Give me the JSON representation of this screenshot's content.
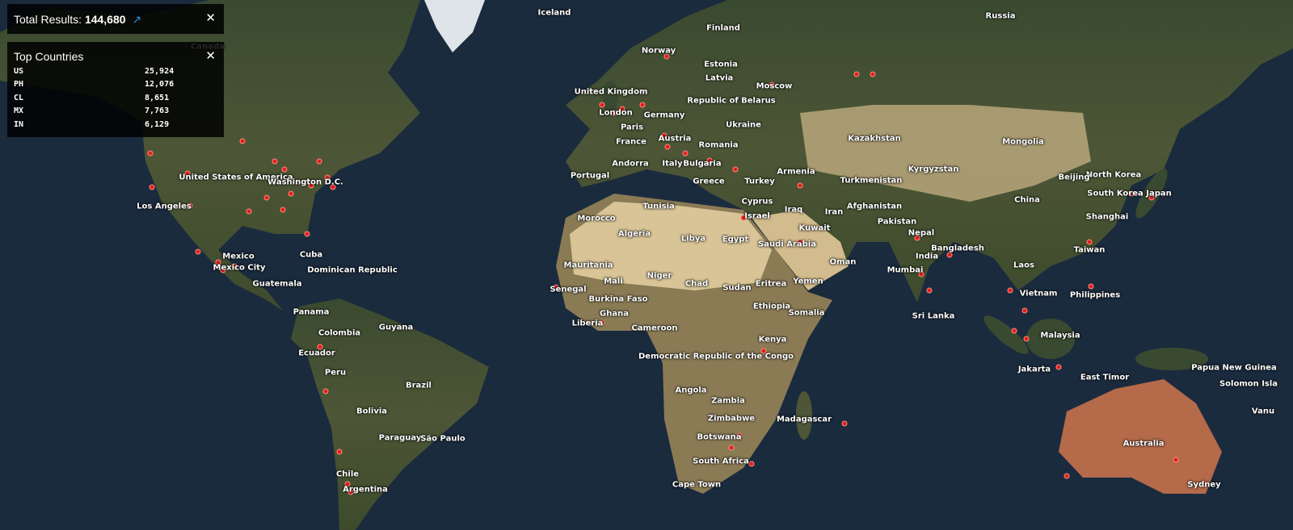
{
  "summary": {
    "label": "Total Results:",
    "value": "144,680",
    "link_icon": "external-link-icon",
    "close_icon": "close-icon"
  },
  "top_countries": {
    "title": "Top Countries",
    "rows": [
      {
        "code": "US",
        "count": "25,924"
      },
      {
        "code": "PH",
        "count": "12,076"
      },
      {
        "code": "CL",
        "count": "8,651"
      },
      {
        "code": "MX",
        "count": "7,763"
      },
      {
        "code": "IN",
        "count": "6,129"
      }
    ]
  },
  "map": {
    "marker_color": "#e0201c",
    "labels": [
      "Iceland",
      "Finland",
      "Russia",
      "Canada",
      "Norway",
      "Estonia",
      "Latvia",
      "Moscow",
      "United Kingdom",
      "Republic of Belarus",
      "Germany",
      "London",
      "Paris",
      "Ukraine",
      "France",
      "Austria",
      "Romania",
      "Kazakhstan",
      "Mongolia",
      "Andorra",
      "Italy",
      "Bulgaria",
      "Armenia",
      "Turkmenistan",
      "Kyrgyzstan",
      "North Korea",
      "Portugal",
      "Greece",
      "Turkey",
      "Beijing",
      "South Korea",
      "Japan",
      "United States of America",
      "Washington D.C.",
      "Cyprus",
      "Israel",
      "Iraq",
      "Afghanistan",
      "Los Angeles",
      "Tunisia",
      "Iran",
      "China",
      "Morocco",
      "Kuwait",
      "Pakistan",
      "Shanghai",
      "Algeria",
      "Libya",
      "Egypt",
      "Saudi Arabia",
      "Nepal",
      "Bangladesh",
      "Mexico",
      "Mexico City",
      "Cuba",
      "Taiwan",
      "Dominican Republic",
      "Oman",
      "India",
      "Mumbai",
      "Laos",
      "Mauritania",
      "Mali",
      "Niger",
      "Chad",
      "Sudan",
      "Eritrea",
      "Yemen",
      "Guatemala",
      "Senegal",
      "Vietnam",
      "Philippines",
      "Burkina Faso",
      "Ethiopia",
      "Panama",
      "Ghana",
      "Somalia",
      "Sri Lanka",
      "Liberia",
      "Cameroon",
      "Guyana",
      "Colombia",
      "Malaysia",
      "Kenya",
      "Ecuador",
      "Democratic Republic of the Congo",
      "Papua New Guinea",
      "Jakarta",
      "East Timor",
      "Solomon Isla",
      "Peru",
      "Brazil",
      "Angola",
      "Zambia",
      "Bolivia",
      "Zimbabwe",
      "Madagascar",
      "Paraguay",
      "São Paulo",
      "Botswana",
      "Australia",
      "Chile",
      "South Africa",
      "Argentina",
      "Cape Town",
      "Sydney",
      "Vanu"
    ]
  }
}
